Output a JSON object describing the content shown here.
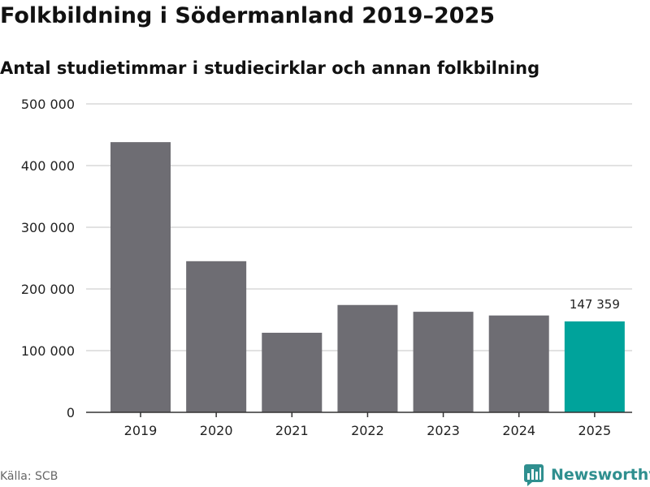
{
  "title": "Folkbildning i Södermanland 2019–2025",
  "subtitle": "Antal studietimmar i studiecirklar och annan folkbilning",
  "source": "Källa: SCB",
  "brand": {
    "name": "Newsworthy",
    "icon": "newsworthy-logo-icon"
  },
  "colors": {
    "bar": "#6e6d73",
    "highlight": "#00a39b",
    "grid": "#d9d9d9",
    "axis": "#333333"
  },
  "chart_data": {
    "type": "bar",
    "title": "Folkbildning i Södermanland 2019–2025",
    "subtitle": "Antal studietimmar i studiecirklar och annan folkbilning",
    "xlabel": "",
    "ylabel": "",
    "categories": [
      "2019",
      "2020",
      "2021",
      "2022",
      "2023",
      "2024",
      "2025"
    ],
    "values": [
      438000,
      245000,
      129000,
      174000,
      163000,
      157000,
      147359
    ],
    "highlight_index": 6,
    "data_labels": [
      {
        "index": 6,
        "text": "147 359"
      }
    ],
    "ylim": [
      0,
      500000
    ],
    "yticks": [
      {
        "value": 0,
        "label": "0"
      },
      {
        "value": 100000,
        "label": "100 000"
      },
      {
        "value": 200000,
        "label": "200 000"
      },
      {
        "value": 300000,
        "label": "300 000"
      },
      {
        "value": 400000,
        "label": "400 000"
      },
      {
        "value": 500000,
        "label": "500 000"
      }
    ],
    "grid": true,
    "legend": "none"
  }
}
